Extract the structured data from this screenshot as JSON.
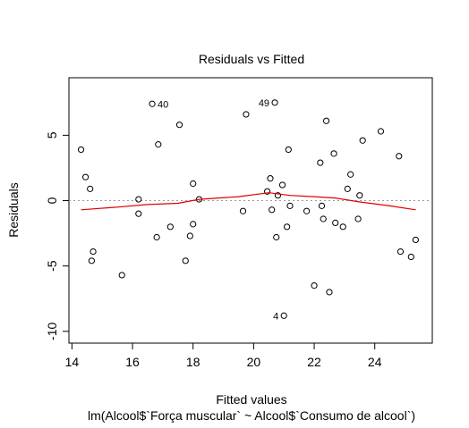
{
  "chart_data": {
    "type": "scatter",
    "title": "Residuals vs Fitted",
    "xlabel": "Fitted values",
    "subtitle": "lm(Alcool$`Força muscular` ~ Alcool$`Consumo de alcool`)",
    "ylabel": "Residuals",
    "xlim": [
      13.9,
      25.9
    ],
    "ylim": [
      -10.9,
      9.4
    ],
    "xticks": [
      14,
      16,
      18,
      20,
      22,
      24
    ],
    "yticks": [
      -10,
      -5,
      0,
      5
    ],
    "zero_line": {
      "y": 0,
      "color": "#9a9a9a",
      "style": "dotted"
    },
    "points": [
      {
        "x": 14.3,
        "y": 3.9
      },
      {
        "x": 14.45,
        "y": 1.8
      },
      {
        "x": 14.6,
        "y": 0.9
      },
      {
        "x": 14.65,
        "y": -4.6
      },
      {
        "x": 14.7,
        "y": -3.9
      },
      {
        "x": 15.65,
        "y": -5.7
      },
      {
        "x": 16.2,
        "y": 0.1
      },
      {
        "x": 16.2,
        "y": -1.0
      },
      {
        "x": 16.65,
        "y": 7.4
      },
      {
        "x": 16.8,
        "y": -2.8
      },
      {
        "x": 16.85,
        "y": 4.3
      },
      {
        "x": 17.25,
        "y": -2.0
      },
      {
        "x": 17.55,
        "y": 5.8
      },
      {
        "x": 17.75,
        "y": -4.6
      },
      {
        "x": 17.9,
        "y": -2.7
      },
      {
        "x": 18.0,
        "y": 1.3
      },
      {
        "x": 18.0,
        "y": -1.8
      },
      {
        "x": 18.2,
        "y": 0.1
      },
      {
        "x": 19.65,
        "y": -0.8
      },
      {
        "x": 19.75,
        "y": 6.6
      },
      {
        "x": 20.45,
        "y": 0.7
      },
      {
        "x": 20.55,
        "y": 1.7
      },
      {
        "x": 20.6,
        "y": -0.7
      },
      {
        "x": 20.7,
        "y": 7.5
      },
      {
        "x": 20.75,
        "y": -2.8
      },
      {
        "x": 20.8,
        "y": 0.4
      },
      {
        "x": 20.95,
        "y": 1.2
      },
      {
        "x": 21.0,
        "y": -8.8
      },
      {
        "x": 21.1,
        "y": -2.0
      },
      {
        "x": 21.15,
        "y": 3.9
      },
      {
        "x": 21.2,
        "y": -0.4
      },
      {
        "x": 21.75,
        "y": -0.8
      },
      {
        "x": 22.0,
        "y": -6.5
      },
      {
        "x": 22.2,
        "y": 2.9
      },
      {
        "x": 22.25,
        "y": -0.4
      },
      {
        "x": 22.3,
        "y": -1.4
      },
      {
        "x": 22.4,
        "y": 6.1
      },
      {
        "x": 22.5,
        "y": -7.0
      },
      {
        "x": 22.65,
        "y": 3.6
      },
      {
        "x": 22.7,
        "y": -1.7
      },
      {
        "x": 22.95,
        "y": -2.0
      },
      {
        "x": 23.1,
        "y": 0.9
      },
      {
        "x": 23.2,
        "y": 2.0
      },
      {
        "x": 23.45,
        "y": -1.4
      },
      {
        "x": 23.5,
        "y": 0.4
      },
      {
        "x": 23.6,
        "y": 4.6
      },
      {
        "x": 24.2,
        "y": 5.3
      },
      {
        "x": 24.8,
        "y": 3.4
      },
      {
        "x": 24.85,
        "y": -3.9
      },
      {
        "x": 25.2,
        "y": -4.3
      },
      {
        "x": 25.35,
        "y": -3.0
      }
    ],
    "labeled_points": [
      {
        "label": "40",
        "x": 16.65,
        "y": 7.4,
        "side": "right"
      },
      {
        "label": "49",
        "x": 20.7,
        "y": 7.5,
        "side": "left"
      },
      {
        "label": "4",
        "x": 21.0,
        "y": -8.8,
        "side": "left"
      }
    ],
    "smooth_line": {
      "color": "#e00000",
      "x": [
        14.3,
        15.5,
        16.5,
        17.5,
        18.2,
        19.5,
        20.5,
        21.2,
        22.0,
        22.7,
        23.5,
        24.5,
        25.35
      ],
      "y": [
        -0.7,
        -0.5,
        -0.3,
        -0.2,
        0.1,
        0.3,
        0.6,
        0.4,
        0.3,
        0.2,
        -0.1,
        -0.4,
        -0.7
      ]
    }
  }
}
